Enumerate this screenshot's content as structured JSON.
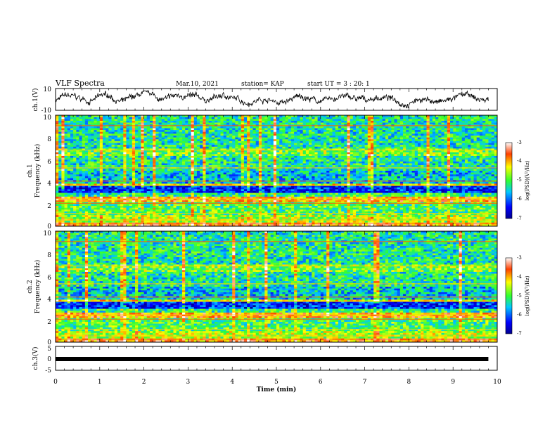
{
  "header": {
    "title": "VLF Spectra",
    "date": "Mar.10, 2021",
    "station": "station= KAP",
    "start": "start  UT =   3 : 20: 1"
  },
  "chart_data": [
    {
      "type": "line",
      "panel": "ch1-waveform",
      "ylabel": "ch.1(V)",
      "ylim": [
        -10,
        10
      ],
      "yticks": [
        "10",
        "-10"
      ],
      "xlim": [
        0,
        10
      ],
      "x_extent_min": 9.8
    },
    {
      "type": "heatmap",
      "panel": "ch1-spectrogram",
      "ylabel_line1": "ch.1",
      "ylabel_line2": "Frequency (kHz)",
      "ylim": [
        0,
        10
      ],
      "yticks": [
        "0",
        "2",
        "4",
        "6",
        "8",
        "10"
      ],
      "colorbar": {
        "label": "log(PSD)(V²/Hz)",
        "ticks": [
          "-3",
          "-4",
          "-5",
          "-6",
          "-7"
        ],
        "range": [
          -7,
          -3
        ]
      }
    },
    {
      "type": "heatmap",
      "panel": "ch2-spectrogram",
      "ylabel_line1": "ch.2",
      "ylabel_line2": "Frequency (kHz)",
      "ylim": [
        0,
        10
      ],
      "yticks": [
        "0",
        "2",
        "4",
        "6",
        "8",
        "10"
      ],
      "colorbar": {
        "label": "log(PSD)(V²/Hz)",
        "ticks": [
          "-3",
          "-4",
          "-5",
          "-6",
          "-7"
        ],
        "range": [
          -7,
          -3
        ]
      }
    },
    {
      "type": "line",
      "panel": "ch3-level",
      "ylabel": "ch.3(V)",
      "ylim": [
        -5,
        5
      ],
      "yticks": [
        "5",
        "0",
        "-5"
      ],
      "value": 0,
      "xlim": [
        0,
        10
      ],
      "xticks": [
        "0",
        "1",
        "2",
        "3",
        "4",
        "5",
        "6",
        "7",
        "8",
        "9",
        "10"
      ],
      "xlabel": "Time  (min)"
    }
  ]
}
